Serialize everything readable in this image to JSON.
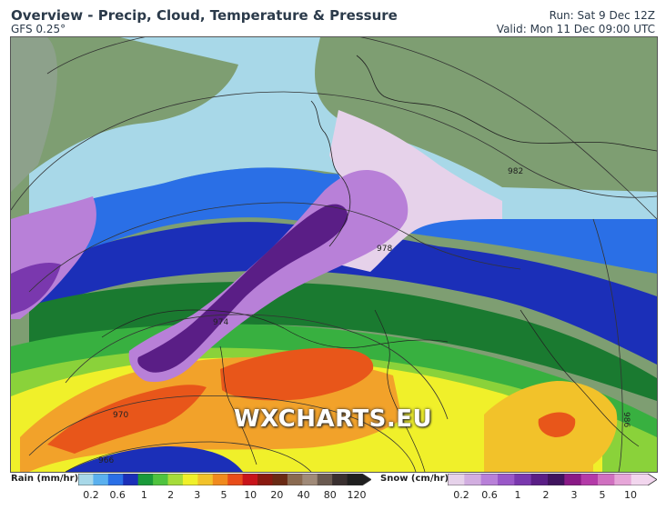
{
  "header": {
    "title": "Overview - Precip, Cloud, Temperature & Pressure",
    "model": "GFS 0.25°",
    "run": "Run: Sat 9 Dec 12Z",
    "valid": "Valid: Mon 11 Dec 09:00 UTC"
  },
  "map": {
    "watermark": "WXCHARTS.EU",
    "isobar_labels": [
      "982",
      "978",
      "974",
      "970",
      "966",
      "986"
    ]
  },
  "legend": {
    "rain": {
      "label": "Rain (mm/hr)",
      "ticks": [
        "0.2",
        "0.6",
        "1",
        "2",
        "3",
        "5",
        "10",
        "20",
        "40",
        "80",
        "120"
      ],
      "colors": [
        "#a8d8e8",
        "#5ab0ee",
        "#2a6fe6",
        "#1b2fb8",
        "#1a9a3a",
        "#4fc33f",
        "#a6dc3a",
        "#f0f02a",
        "#f2c22a",
        "#f08a1e",
        "#e84d1a",
        "#c8141a",
        "#8a1a10",
        "#6a2a14",
        "#8a6a50",
        "#a08a78",
        "#6a5a50",
        "#3a3030",
        "#202020"
      ]
    },
    "snow": {
      "label": "Snow (cm/hr)",
      "ticks": [
        "0.2",
        "0.6",
        "1",
        "2",
        "3",
        "5",
        "10"
      ],
      "colors": [
        "#e6d2ea",
        "#d2aee0",
        "#b880d8",
        "#9a58c8",
        "#7a38ae",
        "#5a1e86",
        "#40145e",
        "#8a1a86",
        "#b43aa8",
        "#d070c0",
        "#e6a6d8",
        "#f2d6ee"
      ]
    }
  }
}
